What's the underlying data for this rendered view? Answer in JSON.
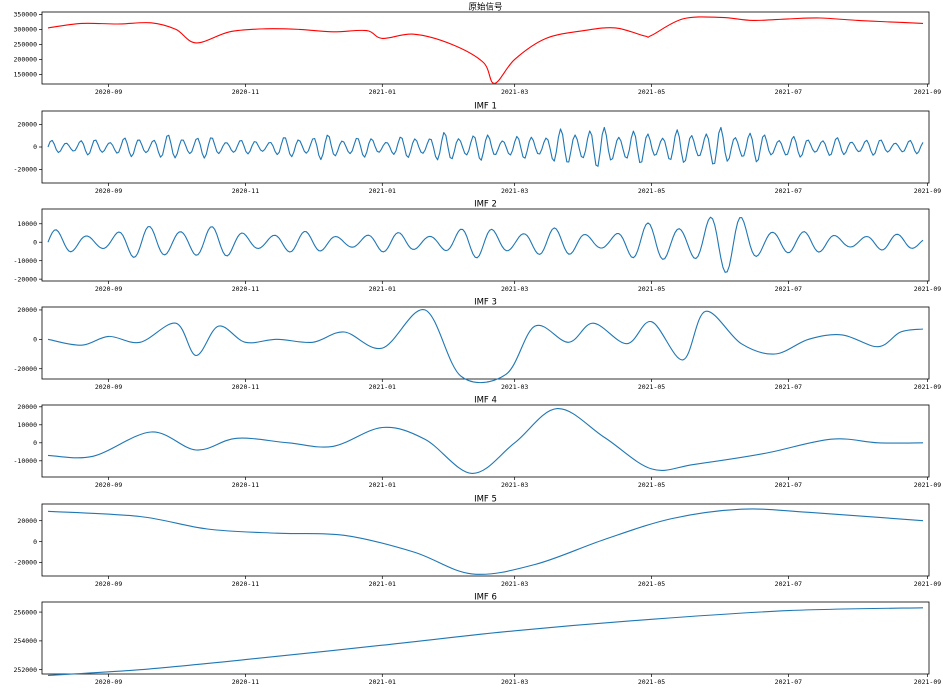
{
  "chart_data": [
    {
      "type": "line",
      "title": "原始信号",
      "color": "#ff0000",
      "ylim": [
        118000,
        358000
      ],
      "yticks": [
        150000,
        200000,
        250000,
        300000,
        350000
      ],
      "x_dates": [
        "2020-08-05",
        "2020-08-20",
        "2020-09-05",
        "2020-09-20",
        "2020-10-01",
        "2020-10-10",
        "2020-10-25",
        "2020-11-10",
        "2020-11-25",
        "2020-12-10",
        "2020-12-25",
        "2021-01-01",
        "2021-01-15",
        "2021-02-01",
        "2021-02-15",
        "2021-02-20",
        "2021-03-01",
        "2021-03-15",
        "2021-04-01",
        "2021-04-15",
        "2021-04-28",
        "2021-05-01",
        "2021-05-15",
        "2021-06-01",
        "2021-06-15",
        "2021-07-01",
        "2021-07-15",
        "2021-08-01",
        "2021-08-15",
        "2021-08-30"
      ],
      "values": [
        305000,
        320000,
        318000,
        322000,
        300000,
        255000,
        292000,
        302000,
        300000,
        292000,
        296000,
        270000,
        284000,
        250000,
        190000,
        120000,
        200000,
        270000,
        296000,
        305000,
        278000,
        280000,
        335000,
        340000,
        330000,
        335000,
        338000,
        330000,
        325000,
        320000
      ],
      "xticks": [
        "2020-09",
        "2020-11",
        "2021-01",
        "2021-03",
        "2021-05",
        "2021-07",
        "2021-09"
      ]
    },
    {
      "type": "line",
      "title": "IMF 1",
      "color": "#1f77b4",
      "ylim": [
        -32000,
        32000
      ],
      "yticks": [
        -20000,
        0,
        20000
      ],
      "osc": {
        "amp": [
          6000,
          8000,
          12000,
          6000,
          12000,
          8000,
          14000,
          10000,
          20000,
          14000,
          18000,
          10000,
          8000,
          6000
        ],
        "freq": 0.9
      },
      "xticks": [
        "2020-09",
        "2020-11",
        "2021-01",
        "2021-03",
        "2021-05",
        "2021-07",
        "2021-09"
      ]
    },
    {
      "type": "line",
      "title": "IMF 2",
      "color": "#1f77b4",
      "ylim": [
        -21000,
        18000
      ],
      "yticks": [
        -20000,
        -10000,
        0,
        10000
      ],
      "osc": {
        "amp": [
          7000,
          6000,
          12000,
          7000,
          6000,
          5000,
          6000,
          9000,
          8000,
          6000,
          14000,
          17000,
          6000,
          5000,
          4000
        ],
        "freq": 0.42
      },
      "xticks": [
        "2020-09",
        "2020-11",
        "2021-01",
        "2021-03",
        "2021-05",
        "2021-07",
        "2021-09"
      ]
    },
    {
      "type": "line",
      "title": "IMF 3",
      "color": "#1f77b4",
      "ylim": [
        -27000,
        22000
      ],
      "yticks": [
        -20000,
        0,
        20000
      ],
      "x_dates": [
        "2020-08-05",
        "2020-08-20",
        "2020-09-01",
        "2020-09-15",
        "2020-10-01",
        "2020-10-10",
        "2020-10-20",
        "2020-11-01",
        "2020-11-15",
        "2020-12-01",
        "2020-12-15",
        "2021-01-01",
        "2021-01-20",
        "2021-02-05",
        "2021-02-25",
        "2021-03-10",
        "2021-03-25",
        "2021-04-05",
        "2021-04-20",
        "2021-05-01",
        "2021-05-15",
        "2021-05-25",
        "2021-06-10",
        "2021-06-25",
        "2021-07-10",
        "2021-07-25",
        "2021-08-10",
        "2021-08-20",
        "2021-08-30"
      ],
      "values": [
        0,
        -4000,
        2000,
        -2000,
        11000,
        -11000,
        9000,
        -2000,
        0,
        -2000,
        5000,
        -6000,
        20000,
        -25000,
        -24000,
        9000,
        -2000,
        11000,
        -3000,
        12000,
        -14000,
        19000,
        -3000,
        -10000,
        0,
        3000,
        -5000,
        5000,
        7000
      ],
      "xticks": [
        "2020-09",
        "2020-11",
        "2021-01",
        "2021-03",
        "2021-05",
        "2021-07",
        "2021-09"
      ]
    },
    {
      "type": "line",
      "title": "IMF 4",
      "color": "#1f77b4",
      "ylim": [
        -19000,
        21000
      ],
      "yticks": [
        -10000,
        0,
        10000,
        20000
      ],
      "x_dates": [
        "2020-08-05",
        "2020-08-25",
        "2020-09-20",
        "2020-10-10",
        "2020-10-28",
        "2020-11-20",
        "2020-12-10",
        "2021-01-01",
        "2021-01-20",
        "2021-02-10",
        "2021-03-01",
        "2021-03-20",
        "2021-04-10",
        "2021-05-01",
        "2021-05-20",
        "2021-06-20",
        "2021-07-20",
        "2021-08-10",
        "2021-08-30"
      ],
      "values": [
        -7000,
        -7500,
        6000,
        -4000,
        2500,
        0,
        -2000,
        8500,
        2000,
        -17000,
        0,
        19000,
        3000,
        -14500,
        -12000,
        -6000,
        2000,
        0,
        0
      ],
      "xticks": [
        "2020-09",
        "2020-11",
        "2021-01",
        "2021-03",
        "2021-05",
        "2021-07",
        "2021-09"
      ]
    },
    {
      "type": "line",
      "title": "IMF 5",
      "color": "#1f77b4",
      "ylim": [
        -33000,
        36000
      ],
      "yticks": [
        -20000,
        0,
        20000
      ],
      "x_dates": [
        "2020-08-05",
        "2020-09-15",
        "2020-10-15",
        "2020-11-15",
        "2020-12-15",
        "2021-01-15",
        "2021-02-10",
        "2021-03-10",
        "2021-04-10",
        "2021-05-10",
        "2021-06-10",
        "2021-07-10",
        "2021-08-30"
      ],
      "values": [
        29000,
        24000,
        12000,
        8000,
        6000,
        -10000,
        -31000,
        -22000,
        2000,
        22000,
        31000,
        28000,
        20000
      ],
      "xticks": [
        "2020-09",
        "2020-11",
        "2021-01",
        "2021-03",
        "2021-05",
        "2021-07",
        "2021-09"
      ]
    },
    {
      "type": "line",
      "title": "IMF 6",
      "color": "#1f77b4",
      "ylim": [
        251700,
        256700
      ],
      "yticks": [
        252000,
        254000,
        256000
      ],
      "x_dates": [
        "2020-08-05",
        "2020-09-15",
        "2020-11-01",
        "2021-01-01",
        "2021-03-01",
        "2021-05-01",
        "2021-07-01",
        "2021-08-30"
      ],
      "values": [
        251600,
        252000,
        252700,
        253700,
        254700,
        255500,
        256100,
        256300
      ],
      "xticks": [
        "2020-09",
        "2020-11",
        "2021-01",
        "2021-03",
        "2021-05",
        "2021-07",
        "2021-09"
      ]
    }
  ]
}
